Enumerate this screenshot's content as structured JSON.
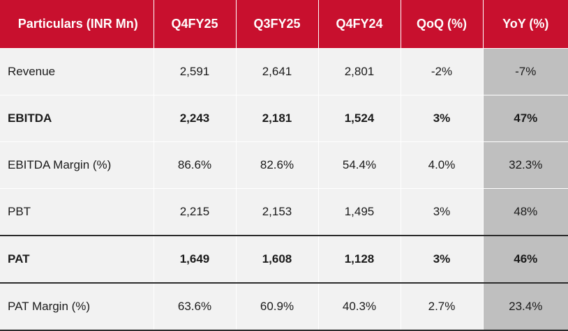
{
  "table": {
    "headers": [
      "Particulars (INR Mn)",
      "Q4FY25",
      "Q3FY25",
      "Q4FY24",
      "QoQ (%)",
      "YoY (%)"
    ],
    "rows": [
      {
        "label": "Revenue",
        "values": [
          "2,591",
          "2,641",
          "2,801",
          "-2%",
          "-7%"
        ],
        "bold": false
      },
      {
        "label": "EBITDA",
        "values": [
          "2,243",
          "2,181",
          "1,524",
          "3%",
          "47%"
        ],
        "bold": true
      },
      {
        "label": "EBITDA Margin (%)",
        "values": [
          "86.6%",
          "82.6%",
          "54.4%",
          "4.0%",
          "32.3%"
        ],
        "bold": false
      },
      {
        "label": "PBT",
        "values": [
          "2,215",
          "2,153",
          "1,495",
          "3%",
          "48%"
        ],
        "bold": false
      },
      {
        "label": "PAT",
        "values": [
          "1,649",
          "1,608",
          "1,128",
          "3%",
          "46%"
        ],
        "bold": true
      },
      {
        "label": "PAT Margin (%)",
        "values": [
          "63.6%",
          "60.9%",
          "40.3%",
          "2.7%",
          "23.4%"
        ],
        "bold": false
      }
    ]
  },
  "colors": {
    "header_bg": "#c8102e",
    "header_text": "#ffffff",
    "cell_bg": "#f2f2f2",
    "yoy_bg": "#bfbfbf"
  }
}
